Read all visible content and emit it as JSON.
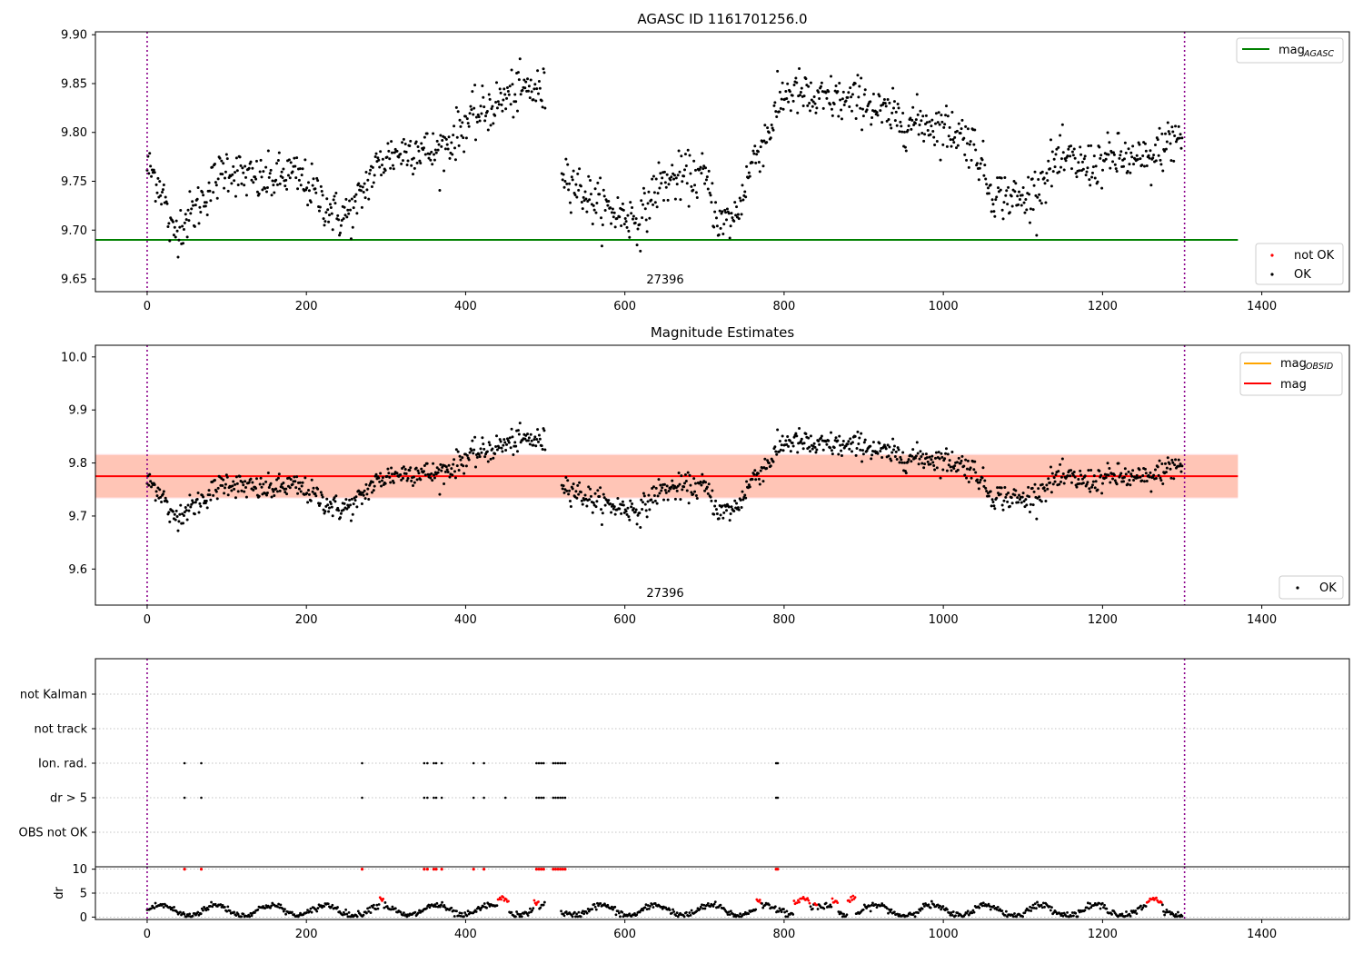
{
  "chart_data": [
    {
      "type": "scatter",
      "title": "AGASC ID 1161701256.0",
      "xlim": [
        -65,
        1510
      ],
      "ylim": [
        9.637,
        9.903
      ],
      "x_ticks": [
        0,
        200,
        400,
        600,
        800,
        1000,
        1200,
        1400
      ],
      "y_ticks": [
        9.65,
        9.7,
        9.75,
        9.8,
        9.85,
        9.9
      ],
      "obsid_label": "27396",
      "vlines": [
        0,
        1303
      ],
      "hline": {
        "name": "mag",
        "subscript": "AGASC",
        "y": 9.69,
        "x_range": [
          -65,
          1370
        ],
        "color": "#008000"
      },
      "series": [
        {
          "name": "not OK",
          "color": "#ff0000"
        },
        {
          "name": "OK",
          "color": "#000000"
        }
      ],
      "mean_profile": {
        "segments": [
          {
            "x": [
              0,
              10,
              20,
              30,
              40,
              60,
              80,
              100,
              120,
              140,
              160,
              180,
              200,
              220,
              240,
              260,
              280,
              300,
              320,
              340,
              360,
              380,
              400,
              420,
              440,
              460,
              480,
              500
            ],
            "y": [
              9.765,
              9.755,
              9.74,
              9.695,
              9.705,
              9.72,
              9.745,
              9.765,
              9.755,
              9.75,
              9.752,
              9.758,
              9.748,
              9.73,
              9.713,
              9.72,
              9.755,
              9.775,
              9.78,
              9.785,
              9.778,
              9.79,
              9.81,
              9.82,
              9.83,
              9.84,
              9.845,
              9.84
            ]
          },
          {
            "x": [
              520,
              540,
              560,
              580,
              600,
              620,
              640,
              660,
              680,
              700,
              720,
              740,
              760,
              780,
              800,
              820,
              840,
              860,
              880,
              900,
              920,
              940,
              960,
              980,
              1000,
              1020,
              1040,
              1060,
              1080,
              1100,
              1120,
              1140,
              1160,
              1180,
              1200,
              1220,
              1240,
              1260,
              1280,
              1300
            ],
            "y": [
              9.765,
              9.745,
              9.73,
              9.72,
              9.715,
              9.71,
              9.745,
              9.752,
              9.755,
              9.755,
              9.705,
              9.715,
              9.77,
              9.8,
              9.84,
              9.84,
              9.83,
              9.835,
              9.83,
              9.835,
              9.82,
              9.815,
              9.81,
              9.81,
              9.805,
              9.8,
              9.785,
              9.74,
              9.735,
              9.73,
              9.745,
              9.77,
              9.77,
              9.765,
              9.77,
              9.775,
              9.77,
              9.77,
              9.79,
              9.795
            ]
          }
        ],
        "scatter": 0.012
      }
    },
    {
      "type": "scatter",
      "title": "Magnitude Estimates",
      "xlim": [
        -65,
        1510
      ],
      "ylim": [
        9.532,
        10.022
      ],
      "x_ticks": [
        0,
        200,
        400,
        600,
        800,
        1000,
        1200,
        1400
      ],
      "y_ticks": [
        9.6,
        9.7,
        9.8,
        9.9,
        10.0
      ],
      "obsid_label": "27396",
      "vlines": [
        0,
        1303
      ],
      "mag_line": {
        "name": "mag",
        "y": 9.775,
        "color": "#ff0000"
      },
      "mag_obsid": {
        "name": "mag",
        "subscript": "OBSID",
        "color": "#ffa500"
      },
      "bands": [
        {
          "y0": 9.733,
          "y1": 9.817,
          "color": "#ffc0cb"
        },
        {
          "y0": 9.735,
          "y1": 9.815,
          "color": "#ffa07a"
        }
      ],
      "series": [
        {
          "name": "OK",
          "color": "#000000"
        }
      ]
    },
    {
      "type": "scatter",
      "categories": [
        "not Kalman",
        "not track",
        "Ion. rad.",
        "dr > 5",
        "OBS not OK"
      ],
      "flag_x": {
        "Ion. rad.": [
          47,
          68,
          270,
          348,
          352,
          360,
          363,
          370,
          410,
          423,
          489,
          492,
          495,
          498,
          510,
          513,
          516,
          519,
          522,
          525,
          790,
          792
        ],
        "dr > 5": [
          47,
          68,
          270,
          348,
          352,
          360,
          363,
          370,
          410,
          423,
          450,
          489,
          492,
          495,
          498,
          510,
          513,
          516,
          519,
          522,
          525,
          790,
          792
        ]
      },
      "xlim": [
        -65,
        1510
      ],
      "x_ticks": [
        0,
        200,
        400,
        600,
        800,
        1000,
        1200,
        1400
      ],
      "vlines": [
        0,
        1303
      ]
    },
    {
      "type": "scatter",
      "ylabel": "dr",
      "ylim": [
        -0.5,
        10.5
      ],
      "y_ticks": [
        0,
        5,
        10
      ],
      "xlim": [
        -65,
        1510
      ],
      "x_ticks": [
        0,
        200,
        400,
        600,
        800,
        1000,
        1200,
        1400
      ],
      "vlines": [
        0,
        1303
      ],
      "dr_ten_x": [
        47,
        68,
        270,
        348,
        352,
        360,
        363,
        370,
        410,
        423,
        489,
        492,
        495,
        498,
        510,
        513,
        516,
        519,
        522,
        525,
        790,
        792
      ],
      "dr_red_segments": [
        [
          292,
          297
        ],
        [
          440,
          455
        ],
        [
          485,
          492
        ],
        [
          765,
          772
        ],
        [
          812,
          832
        ],
        [
          838,
          842
        ],
        [
          860,
          868
        ],
        [
          880,
          890
        ],
        [
          1255,
          1275
        ]
      ],
      "series": [
        {
          "name": "OK",
          "color": "#000000"
        },
        {
          "name": "not OK",
          "color": "#ff0000"
        }
      ]
    }
  ]
}
